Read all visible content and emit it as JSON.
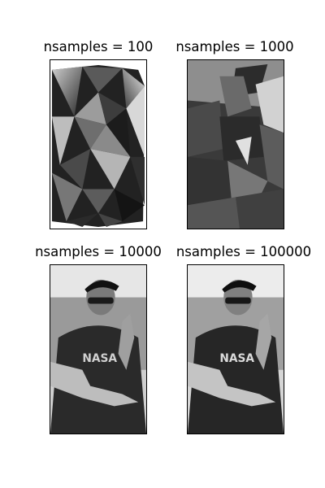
{
  "chart_data": [
    {
      "type": "image",
      "title": "nsamples = 100",
      "nsamples": 100,
      "description_style": "coarse-triangulated-grayscale"
    },
    {
      "type": "image",
      "title": "nsamples = 1000",
      "nsamples": 1000,
      "description_style": "triangulated-grayscale"
    },
    {
      "type": "image",
      "title": "nsamples = 10000",
      "nsamples": 10000,
      "description_style": "fine-grayscale"
    },
    {
      "type": "image",
      "title": "nsamples = 100000",
      "nsamples": 100000,
      "description_style": "finest-grayscale"
    }
  ]
}
